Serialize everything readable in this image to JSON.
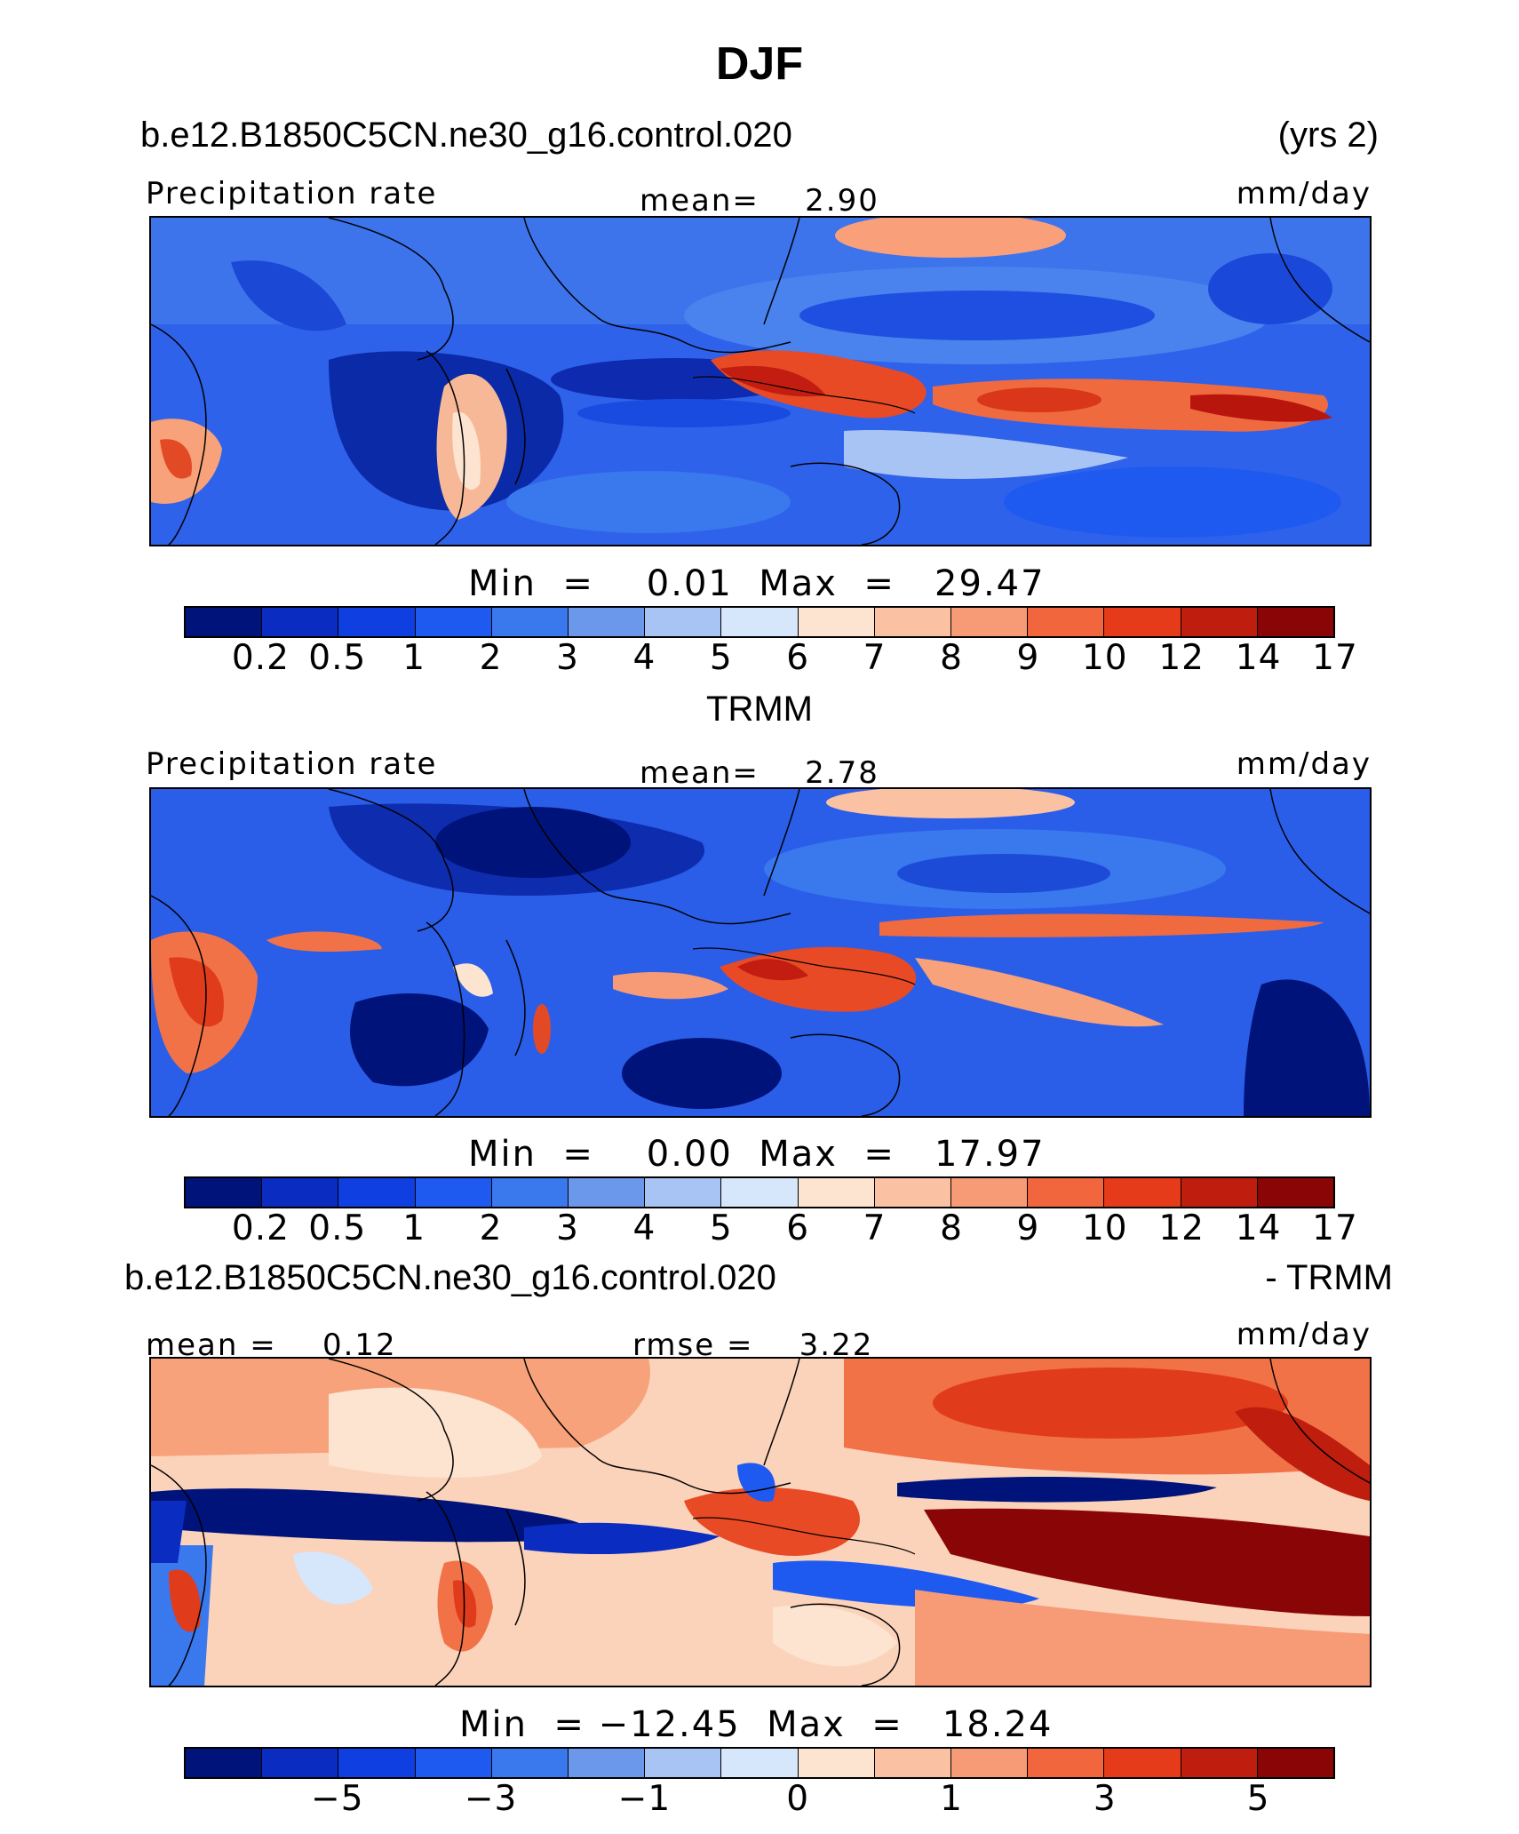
{
  "title": "DJF",
  "panels": [
    {
      "heading_left": "b.e12.B1850C5CN.ne30_g16.control.020",
      "heading_right": "(yrs 2)",
      "left_label": "Precipitation rate",
      "center_label": "mean=    2.90",
      "units": "mm/day",
      "minmax": "Min  =    0.01  Max  =   29.47",
      "colorbar_ticks": [
        "0.2",
        "0.5",
        "1",
        "2",
        "3",
        "4",
        "5",
        "6",
        "7",
        "8",
        "9",
        "10",
        "12",
        "14",
        "17"
      ]
    },
    {
      "heading_center": "TRMM",
      "left_label": "Precipitation rate",
      "center_label": "mean=    2.78",
      "units": "mm/day",
      "minmax": "Min  =    0.00  Max  =   17.97",
      "colorbar_ticks": [
        "0.2",
        "0.5",
        "1",
        "2",
        "3",
        "4",
        "5",
        "6",
        "7",
        "8",
        "9",
        "10",
        "12",
        "14",
        "17"
      ]
    },
    {
      "heading_left": "b.e12.B1850C5CN.ne30_g16.control.020",
      "heading_right": "- TRMM",
      "left_label": "mean =    0.12",
      "center_label": "rmse =    3.22",
      "units": "mm/day",
      "minmax": "Min  = −12.45  Max  =   18.24",
      "colorbar_ticks": [
        "−5",
        "−3",
        "−1",
        "0",
        "1",
        "3",
        "5"
      ]
    }
  ],
  "colorbar_colors": [
    "#00137a",
    "#0a2cc0",
    "#0f3fe0",
    "#1e5af0",
    "#3a78ee",
    "#6c98ec",
    "#a8c4f4",
    "#d6e6fb",
    "#fde4d0",
    "#fbc1a3",
    "#f79b76",
    "#f2663e",
    "#e53b1a",
    "#bf1e0f",
    "#8a0505"
  ]
}
